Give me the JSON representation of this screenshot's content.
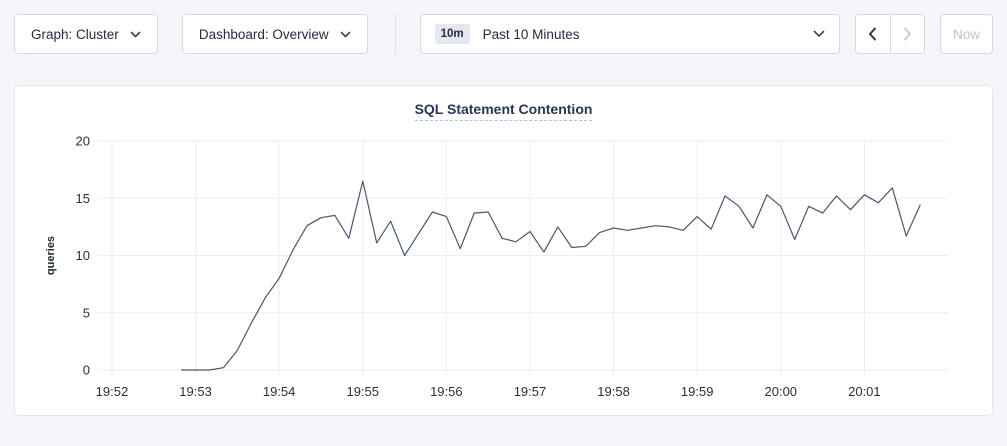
{
  "toolbar": {
    "graph_dropdown_label": "Graph: Cluster",
    "dashboard_dropdown_label": "Dashboard: Overview",
    "time_window_badge": "10m",
    "time_window_label": "Past 10 Minutes",
    "now_button_label": "Now"
  },
  "colors": {
    "text_dark": "#242c3e",
    "line": "#475872",
    "grid": "#ededf1",
    "badge_bg": "#e4e7f0",
    "title": "#26355e",
    "title_underline": "#b4c1da",
    "disabled": "#bcc3cf"
  },
  "chart_data": {
    "type": "line",
    "title": "SQL Statement Contention",
    "ylabel": "queries",
    "ylim": [
      0,
      20
    ],
    "yticks": [
      0,
      5,
      10,
      15,
      20
    ],
    "x_tick_labels": [
      "19:52",
      "19:53",
      "19:54",
      "19:55",
      "19:56",
      "19:57",
      "19:58",
      "19:59",
      "20:00",
      "20:01"
    ],
    "x_tick_seconds": [
      10,
      70,
      130,
      190,
      250,
      310,
      370,
      430,
      490,
      550
    ],
    "x_domain_seconds": [
      0,
      610
    ],
    "x_start_time": "19:52:50",
    "x_start_seconds": 60,
    "x_interval_seconds": 10,
    "grid": true,
    "legend": "none",
    "values": [
      0,
      0,
      0,
      0.2,
      1.7,
      4.1,
      6.3,
      8.0,
      10.5,
      12.6,
      13.3,
      13.5,
      11.5,
      16.5,
      11.1,
      13.0,
      10.0,
      11.9,
      13.8,
      13.4,
      10.6,
      13.7,
      13.8,
      11.5,
      11.2,
      12.1,
      10.3,
      12.5,
      10.7,
      10.8,
      12.0,
      12.4,
      12.2,
      12.4,
      12.6,
      12.5,
      12.2,
      13.4,
      12.3,
      15.2,
      14.3,
      12.4,
      15.3,
      14.3,
      11.4,
      14.3,
      13.7,
      15.2,
      14.0,
      15.3,
      14.6,
      15.9,
      11.7,
      14.4
    ]
  }
}
